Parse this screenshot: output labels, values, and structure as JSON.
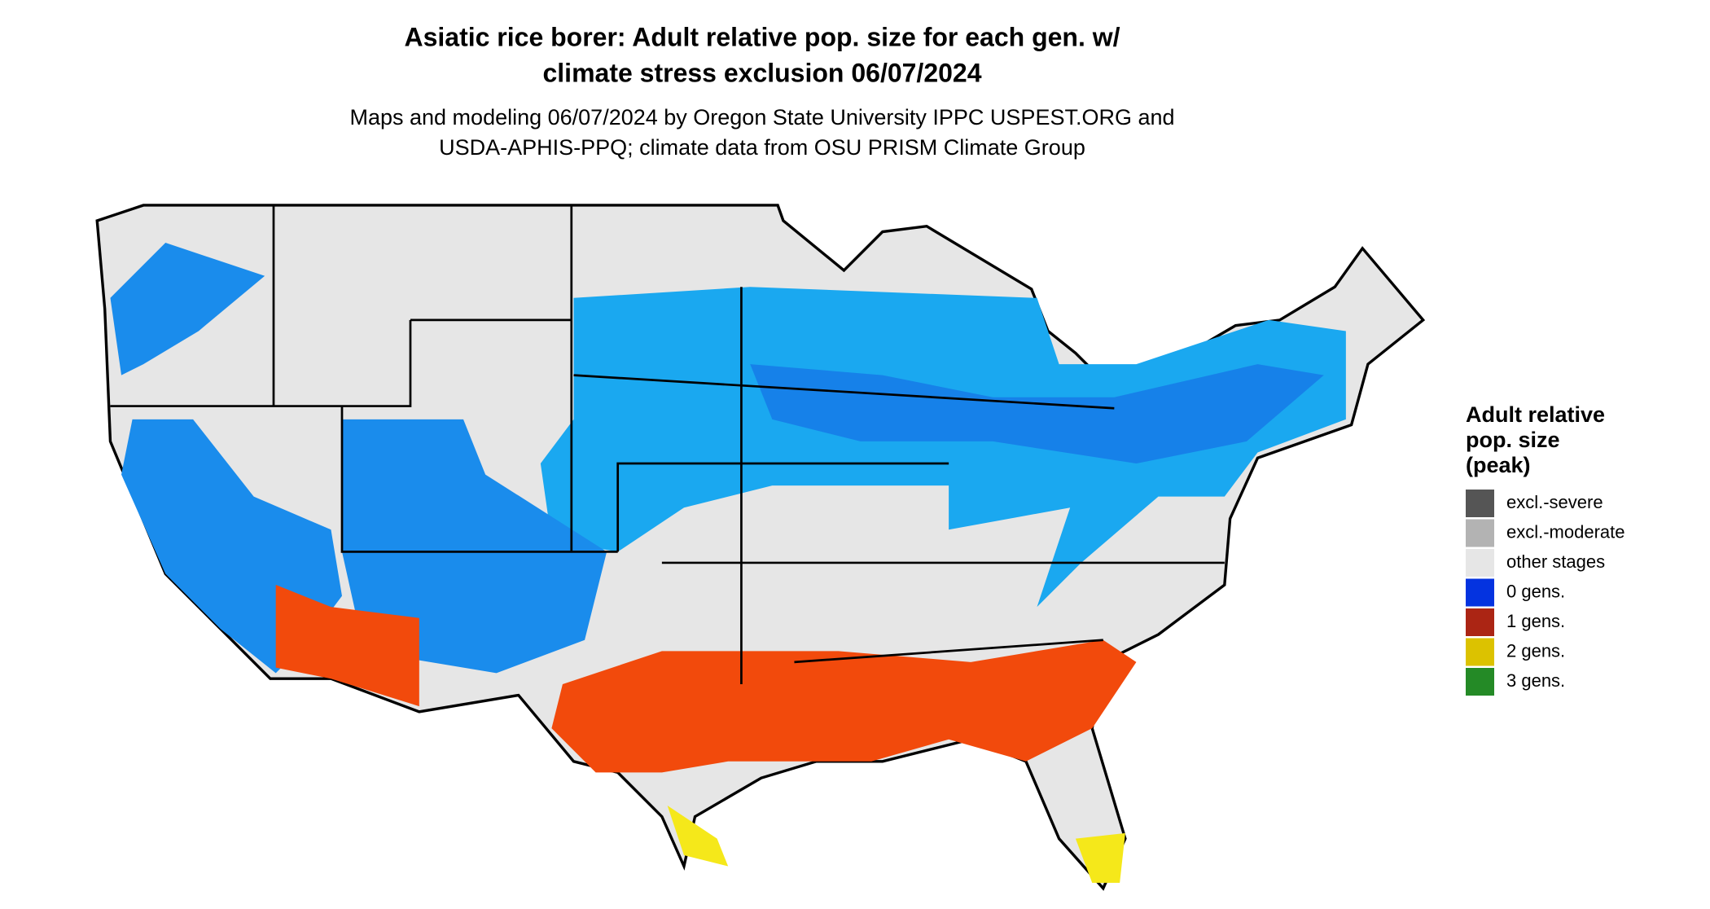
{
  "title": [
    "Asiatic rice borer: Adult relative pop. size for each gen. w/",
    "climate stress exclusion 06/07/2024"
  ],
  "subtitle": [
    "Maps and modeling 06/07/2024 by Oregon State University IPPC USPEST.ORG and",
    "USDA-APHIS-PPQ; climate data from OSU PRISM Climate Group"
  ],
  "legend": {
    "title": [
      "Adult relative",
      "pop. size",
      "(peak)"
    ],
    "items": [
      {
        "label": "excl.-severe",
        "color": "#555555"
      },
      {
        "label": "excl.-moderate",
        "color": "#b3b3b3"
      },
      {
        "label": "other stages",
        "color": "#e6e6e6"
      },
      {
        "label": "0 gens.",
        "color": "#0433e0"
      },
      {
        "label": "1 gens.",
        "color": "#ab2514"
      },
      {
        "label": "2 gens.",
        "color": "#dcc200"
      },
      {
        "label": "3 gens.",
        "color": "#248a26"
      }
    ]
  }
}
